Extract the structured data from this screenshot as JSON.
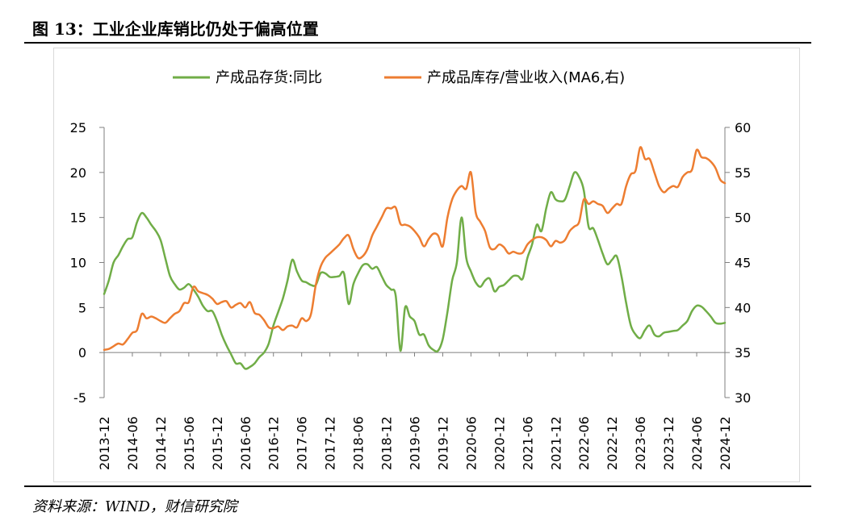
{
  "header": {
    "title": "图 13：工业企业库销比仍处于偏高位置"
  },
  "footer": {
    "source": "资料来源：WIND，财信研究院"
  },
  "chart_data": {
    "type": "line",
    "title": "",
    "legend_position": "top",
    "grid": false,
    "x_tick_labels": [
      "2013-12",
      "2014-06",
      "2014-12",
      "2015-06",
      "2015-12",
      "2016-06",
      "2016-12",
      "2017-06",
      "2017-12",
      "2018-06",
      "2018-12",
      "2019-06",
      "2019-12",
      "2020-06",
      "2020-12",
      "2021-06",
      "2021-12",
      "2022-06",
      "2022-12",
      "2023-06",
      "2023-12",
      "2024-06",
      "2024-12"
    ],
    "x_range_months": [
      0,
      132
    ],
    "y_left": {
      "min": -5,
      "max": 25,
      "ticks": [
        -5,
        0,
        5,
        10,
        15,
        20,
        25
      ],
      "tick_labels": [
        "-5",
        "0",
        "5",
        "10",
        "15",
        "20",
        "25"
      ]
    },
    "y_right": {
      "min": 30,
      "max": 60,
      "ticks": [
        30,
        35,
        40,
        45,
        50,
        55,
        60
      ],
      "tick_labels": [
        "30",
        "35",
        "40",
        "45",
        "50",
        "55",
        "60"
      ]
    },
    "series": [
      {
        "name": "产成品存货:同比",
        "axis": "left",
        "color": "#70ad47",
        "points": [
          [
            0,
            6.5
          ],
          [
            1,
            8.0
          ],
          [
            2,
            10.0
          ],
          [
            3,
            10.8
          ],
          [
            4,
            11.8
          ],
          [
            5,
            12.6
          ],
          [
            6,
            12.8
          ],
          [
            7,
            14.5
          ],
          [
            8,
            15.5
          ],
          [
            9,
            15.0
          ],
          [
            10,
            14.2
          ],
          [
            11,
            13.5
          ],
          [
            12,
            12.5
          ],
          [
            13,
            10.5
          ],
          [
            14,
            8.5
          ],
          [
            15,
            7.6
          ],
          [
            16,
            7.0
          ],
          [
            17,
            7.2
          ],
          [
            18,
            7.6
          ],
          [
            19,
            7.0
          ],
          [
            20,
            6.2
          ],
          [
            21,
            5.2
          ],
          [
            22,
            4.6
          ],
          [
            23,
            4.6
          ],
          [
            24,
            3.5
          ],
          [
            25,
            2.0
          ],
          [
            26,
            0.8
          ],
          [
            27,
            -0.2
          ],
          [
            28,
            -1.2
          ],
          [
            29,
            -1.2
          ],
          [
            30,
            -1.8
          ],
          [
            31,
            -1.6
          ],
          [
            32,
            -1.2
          ],
          [
            33,
            -0.5
          ],
          [
            34,
            0.0
          ],
          [
            35,
            1.0
          ],
          [
            36,
            3.0
          ],
          [
            37,
            4.5
          ],
          [
            38,
            6.0
          ],
          [
            39,
            8.0
          ],
          [
            40,
            10.3
          ],
          [
            41,
            9.0
          ],
          [
            42,
            8.0
          ],
          [
            43,
            7.8
          ],
          [
            44,
            7.5
          ],
          [
            45,
            7.5
          ],
          [
            46,
            8.8
          ],
          [
            47,
            8.8
          ],
          [
            48,
            8.4
          ],
          [
            49,
            8.4
          ],
          [
            50,
            8.5
          ],
          [
            51,
            8.8
          ],
          [
            52,
            5.4
          ],
          [
            53,
            7.6
          ],
          [
            54,
            8.8
          ],
          [
            55,
            9.7
          ],
          [
            56,
            9.8
          ],
          [
            57,
            9.3
          ],
          [
            58,
            9.5
          ],
          [
            59,
            8.5
          ],
          [
            60,
            7.5
          ],
          [
            61,
            7.0
          ],
          [
            62,
            6.3
          ],
          [
            63,
            0.2
          ],
          [
            64,
            5.0
          ],
          [
            65,
            4.0
          ],
          [
            66,
            3.5
          ],
          [
            67,
            2.0
          ],
          [
            68,
            2.0
          ],
          [
            69,
            0.8
          ],
          [
            70,
            0.3
          ],
          [
            71,
            0.2
          ],
          [
            72,
            1.5
          ],
          [
            73,
            4.5
          ],
          [
            74,
            8.0
          ],
          [
            75,
            10.0
          ],
          [
            76,
            15.0
          ],
          [
            77,
            10.5
          ],
          [
            78,
            9.0
          ],
          [
            79,
            7.8
          ],
          [
            80,
            7.3
          ],
          [
            81,
            8.0
          ],
          [
            82,
            8.2
          ],
          [
            83,
            6.8
          ],
          [
            84,
            7.3
          ],
          [
            85,
            7.5
          ],
          [
            86,
            8.0
          ],
          [
            87,
            8.5
          ],
          [
            88,
            8.5
          ],
          [
            89,
            8.2
          ],
          [
            90,
            10.5
          ],
          [
            91,
            12.0
          ],
          [
            92,
            14.2
          ],
          [
            93,
            13.5
          ],
          [
            94,
            16.0
          ],
          [
            95,
            17.8
          ],
          [
            96,
            17.0
          ],
          [
            97,
            16.8
          ],
          [
            98,
            17.0
          ],
          [
            99,
            18.5
          ],
          [
            100,
            20.0
          ],
          [
            101,
            19.5
          ],
          [
            102,
            18.0
          ],
          [
            103,
            14.0
          ],
          [
            104,
            13.8
          ],
          [
            105,
            12.5
          ],
          [
            106,
            11.0
          ],
          [
            107,
            9.8
          ],
          [
            108,
            10.3
          ],
          [
            109,
            10.7
          ],
          [
            110,
            8.5
          ],
          [
            111,
            5.5
          ],
          [
            112,
            3.0
          ],
          [
            113,
            2.0
          ],
          [
            114,
            1.6
          ],
          [
            115,
            2.5
          ],
          [
            116,
            3.0
          ],
          [
            117,
            2.0
          ],
          [
            118,
            1.8
          ],
          [
            119,
            2.2
          ],
          [
            120,
            2.3
          ],
          [
            121,
            2.4
          ],
          [
            122,
            2.5
          ],
          [
            123,
            3.0
          ],
          [
            124,
            3.5
          ],
          [
            125,
            4.6
          ],
          [
            126,
            5.2
          ],
          [
            127,
            5.1
          ],
          [
            128,
            4.6
          ],
          [
            129,
            4.0
          ],
          [
            130,
            3.3
          ],
          [
            131,
            3.2
          ],
          [
            132,
            3.3
          ]
        ]
      },
      {
        "name": "产成品库存/营业收入(MA6,右)",
        "axis": "right",
        "color": "#ed7d31",
        "points": [
          [
            0,
            35.3
          ],
          [
            1,
            35.4
          ],
          [
            2,
            35.7
          ],
          [
            3,
            36.0
          ],
          [
            4,
            35.9
          ],
          [
            5,
            36.5
          ],
          [
            6,
            37.2
          ],
          [
            7,
            37.5
          ],
          [
            8,
            39.3
          ],
          [
            9,
            38.8
          ],
          [
            10,
            39.0
          ],
          [
            11,
            38.8
          ],
          [
            12,
            38.5
          ],
          [
            13,
            38.3
          ],
          [
            14,
            38.8
          ],
          [
            15,
            39.3
          ],
          [
            16,
            39.6
          ],
          [
            17,
            40.5
          ],
          [
            18,
            40.6
          ],
          [
            19,
            42.3
          ],
          [
            20,
            41.8
          ],
          [
            21,
            41.6
          ],
          [
            22,
            41.4
          ],
          [
            23,
            41.0
          ],
          [
            24,
            40.4
          ],
          [
            25,
            40.6
          ],
          [
            26,
            40.7
          ],
          [
            27,
            40.0
          ],
          [
            28,
            40.3
          ],
          [
            29,
            40.5
          ],
          [
            30,
            40.0
          ],
          [
            31,
            40.6
          ],
          [
            32,
            39.4
          ],
          [
            33,
            39.2
          ],
          [
            34,
            38.6
          ],
          [
            35,
            37.8
          ],
          [
            36,
            37.7
          ],
          [
            37,
            37.9
          ],
          [
            38,
            37.5
          ],
          [
            39,
            37.9
          ],
          [
            40,
            38.0
          ],
          [
            41,
            37.8
          ],
          [
            42,
            38.8
          ],
          [
            43,
            38.5
          ],
          [
            44,
            39.3
          ],
          [
            45,
            42.5
          ],
          [
            46,
            44.5
          ],
          [
            47,
            45.5
          ],
          [
            48,
            46.0
          ],
          [
            49,
            46.5
          ],
          [
            50,
            47.0
          ],
          [
            51,
            47.7
          ],
          [
            52,
            48.0
          ],
          [
            53,
            46.5
          ],
          [
            54,
            45.5
          ],
          [
            55,
            45.7
          ],
          [
            56,
            46.5
          ],
          [
            57,
            48.0
          ],
          [
            58,
            49.0
          ],
          [
            59,
            50.0
          ],
          [
            60,
            51.0
          ],
          [
            61,
            51.0
          ],
          [
            62,
            51.1
          ],
          [
            63,
            49.3
          ],
          [
            64,
            49.2
          ],
          [
            65,
            49.0
          ],
          [
            66,
            48.5
          ],
          [
            67,
            47.8
          ],
          [
            68,
            46.8
          ],
          [
            69,
            47.6
          ],
          [
            70,
            48.2
          ],
          [
            71,
            48.0
          ],
          [
            72,
            46.8
          ],
          [
            73,
            50.0
          ],
          [
            74,
            52.0
          ],
          [
            75,
            53.0
          ],
          [
            76,
            53.5
          ],
          [
            77,
            53.2
          ],
          [
            78,
            55.0
          ],
          [
            79,
            50.6
          ],
          [
            80,
            49.5
          ],
          [
            81,
            48.5
          ],
          [
            82,
            46.7
          ],
          [
            83,
            46.5
          ],
          [
            84,
            47.0
          ],
          [
            85,
            46.7
          ],
          [
            86,
            46.0
          ],
          [
            87,
            46.2
          ],
          [
            88,
            46.0
          ],
          [
            89,
            46.1
          ],
          [
            90,
            47.0
          ],
          [
            91,
            47.5
          ],
          [
            92,
            47.8
          ],
          [
            93,
            47.8
          ],
          [
            94,
            47.5
          ],
          [
            95,
            46.8
          ],
          [
            96,
            47.4
          ],
          [
            97,
            47.2
          ],
          [
            98,
            47.5
          ],
          [
            99,
            48.5
          ],
          [
            100,
            49.0
          ],
          [
            101,
            49.5
          ],
          [
            102,
            52.0
          ],
          [
            103,
            51.5
          ],
          [
            104,
            51.8
          ],
          [
            105,
            51.5
          ],
          [
            106,
            51.3
          ],
          [
            107,
            50.5
          ],
          [
            108,
            51.0
          ],
          [
            109,
            51.5
          ],
          [
            110,
            51.5
          ],
          [
            111,
            53.5
          ],
          [
            112,
            54.8
          ],
          [
            113,
            55.2
          ],
          [
            114,
            57.8
          ],
          [
            115,
            56.5
          ],
          [
            116,
            56.5
          ],
          [
            117,
            55.0
          ],
          [
            118,
            53.5
          ],
          [
            119,
            52.8
          ],
          [
            120,
            53.2
          ],
          [
            121,
            53.5
          ],
          [
            122,
            53.4
          ],
          [
            123,
            54.5
          ],
          [
            124,
            55.0
          ],
          [
            125,
            55.3
          ],
          [
            126,
            57.5
          ],
          [
            127,
            56.7
          ],
          [
            128,
            56.6
          ],
          [
            129,
            56.2
          ],
          [
            130,
            55.5
          ],
          [
            131,
            54.2
          ],
          [
            132,
            53.8
          ]
        ]
      }
    ]
  }
}
